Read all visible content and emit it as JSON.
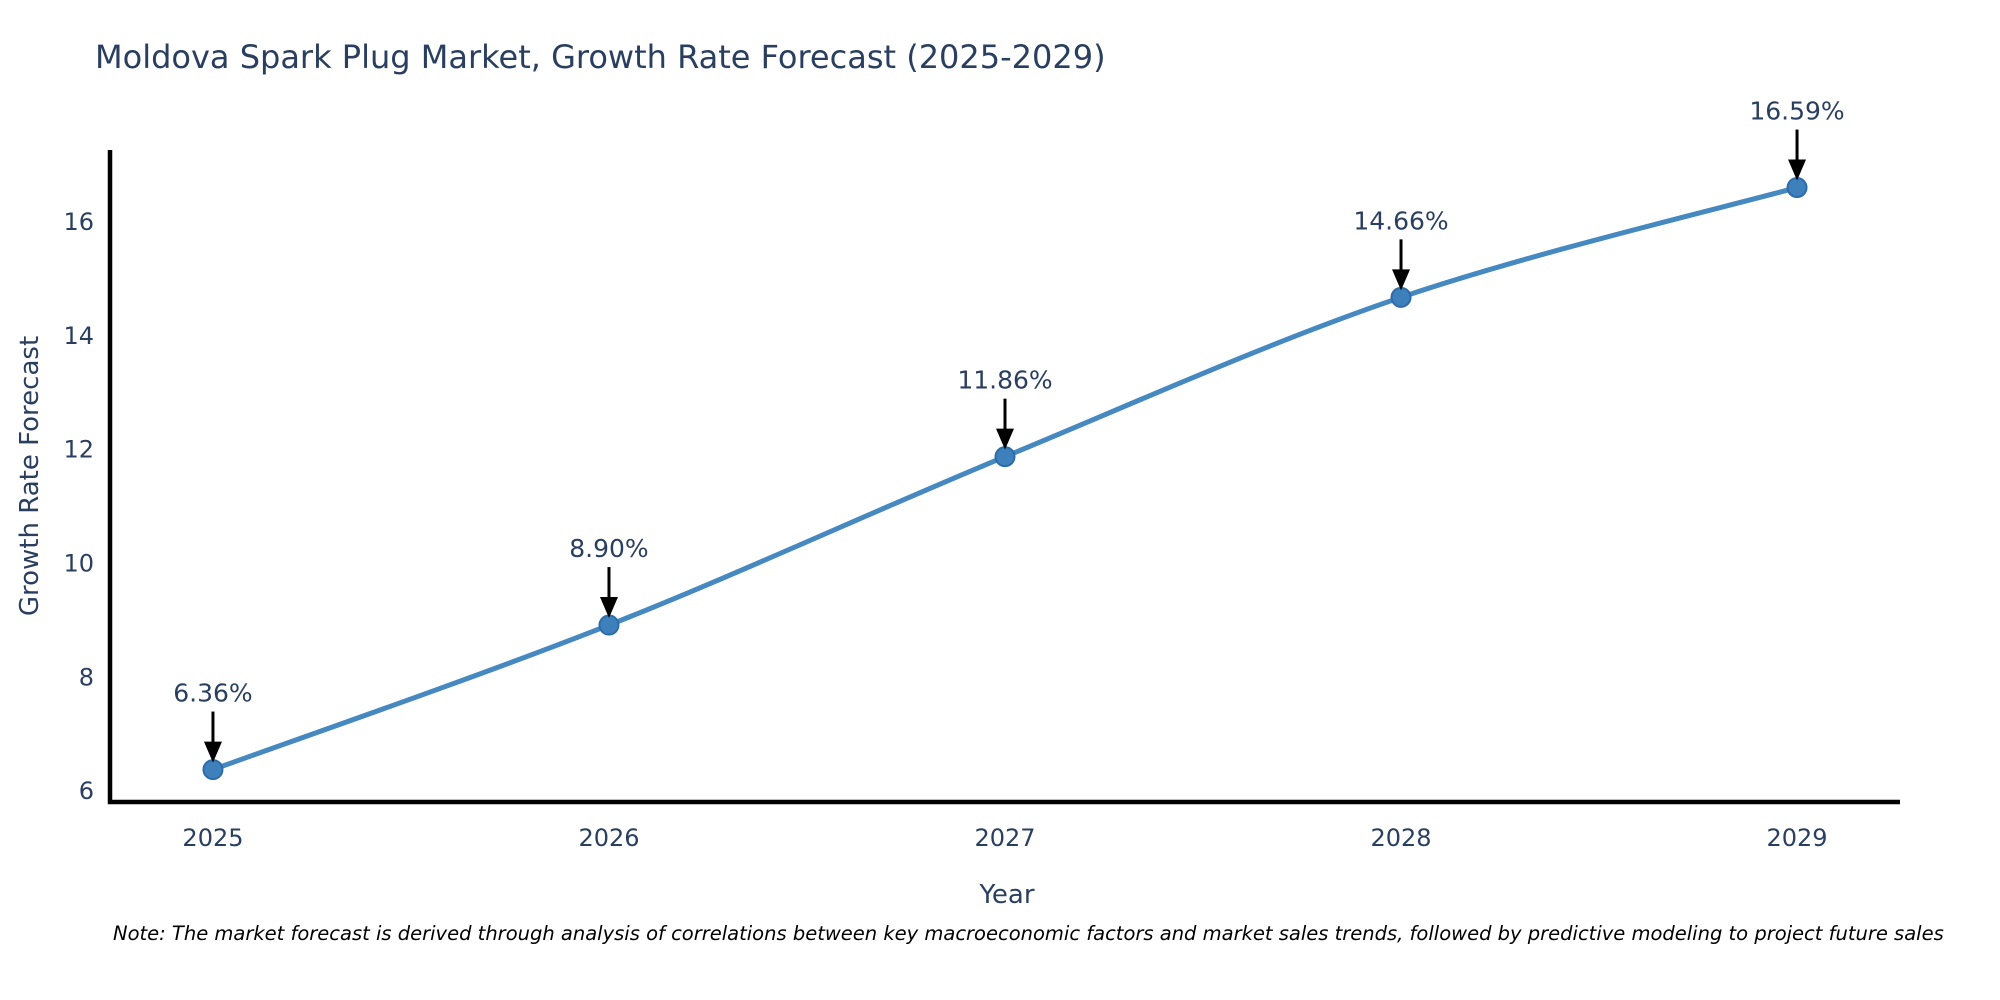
{
  "page": {
    "background": "#ffffff"
  },
  "chart_data": {
    "type": "line",
    "title": "Moldova Spark Plug Market, Growth Rate Forecast (2025-2029)",
    "xlabel": "Year",
    "ylabel": "Growth Rate Forecast",
    "x": [
      2025,
      2026,
      2027,
      2028,
      2029
    ],
    "series": [
      {
        "name": "Growth Rate Forecast",
        "values": [
          6.36,
          8.9,
          11.86,
          14.66,
          16.59
        ]
      }
    ],
    "point_labels": [
      "6.36%",
      "8.90%",
      "11.86%",
      "14.66%",
      "16.59%"
    ],
    "xtick_labels": [
      "2025",
      "2026",
      "2027",
      "2028",
      "2029"
    ],
    "ytick_values": [
      6,
      8,
      10,
      12,
      14,
      16
    ],
    "ytick_labels": [
      "6",
      "8",
      "10",
      "12",
      "14",
      "16"
    ],
    "xlim": [
      2024.74,
      2029.26
    ],
    "ylim": [
      5.79,
      17.25
    ],
    "grid": false,
    "legend_position": "none",
    "line_shape": "spline",
    "colors": {
      "line": "#4688c0",
      "marker_fill": "#3d80bc",
      "marker_edge": "#2d6ca8",
      "axis": "#000000",
      "tick_text": "#2a3f5f",
      "annotation_text": "#2a3f5f",
      "annotation_arrow": "#000000",
      "title_text": "#2a3f5f"
    }
  },
  "footnote": {
    "text": "Note: The market forecast is derived through analysis of correlations between key macroeconomic factors and market sales trends, followed by predictive modeling to project future sales"
  }
}
